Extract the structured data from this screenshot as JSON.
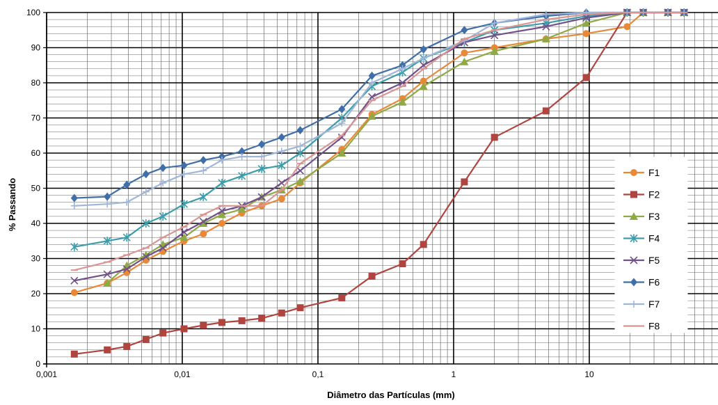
{
  "chart_data": {
    "type": "line",
    "xlabel": "Diâmetro das Partículas (mm)",
    "ylabel": "% Passando",
    "x_scale": "log",
    "xlim": [
      0.001,
      100
    ],
    "ylim": [
      0,
      100
    ],
    "grid": true,
    "legend_position": "right",
    "x_tick_labels": [
      "0,001",
      "0,01",
      "0,1",
      "1",
      "10"
    ],
    "y_tick_labels": [
      "0",
      "10",
      "20",
      "30",
      "40",
      "50",
      "60",
      "70",
      "80",
      "90",
      "100"
    ],
    "series": [
      {
        "name": "F1",
        "color": "#E8893A",
        "marker": "circle",
        "x": [
          0.0016,
          0.0028,
          0.0039,
          0.0054,
          0.0072,
          0.0103,
          0.0143,
          0.0196,
          0.0275,
          0.0385,
          0.054,
          0.074,
          0.15,
          0.25,
          0.42,
          0.6,
          1.2,
          2,
          4.8,
          9.5,
          19,
          25,
          38,
          50
        ],
        "y": [
          20.3,
          23,
          26,
          29.5,
          32,
          35,
          37,
          40,
          43,
          45,
          47,
          51.5,
          61,
          71,
          75.5,
          80.5,
          88.5,
          90,
          92.5,
          94,
          96,
          100,
          100,
          100
        ]
      },
      {
        "name": "F2",
        "color": "#B04540",
        "marker": "square",
        "x": [
          0.0016,
          0.0028,
          0.0039,
          0.0054,
          0.0072,
          0.0103,
          0.0143,
          0.0196,
          0.0275,
          0.0385,
          0.054,
          0.074,
          0.15,
          0.25,
          0.42,
          0.6,
          1.2,
          2,
          4.8,
          9.5,
          19,
          25,
          38,
          50
        ],
        "y": [
          2.8,
          4,
          5,
          7,
          8.8,
          10,
          11,
          11.8,
          12.3,
          13,
          14.5,
          16,
          18.8,
          25,
          28.5,
          34,
          51.8,
          64.5,
          72,
          81.5,
          100,
          100,
          100,
          100
        ]
      },
      {
        "name": "F3",
        "color": "#8FAA45",
        "marker": "triangle",
        "x": [
          0.0028,
          0.0039,
          0.0054,
          0.0072,
          0.0103,
          0.0143,
          0.0196,
          0.0275,
          0.0385,
          0.054,
          0.074,
          0.15,
          0.25,
          0.42,
          0.6,
          1.2,
          2,
          4.8,
          9.5,
          19,
          25,
          38,
          50
        ],
        "y": [
          23,
          28,
          31,
          34,
          36,
          40,
          42.5,
          44,
          47.5,
          49.5,
          52,
          60,
          70.5,
          74.5,
          79,
          86,
          89,
          92.5,
          97,
          100,
          100,
          100,
          100
        ]
      },
      {
        "name": "F4",
        "color": "#3C9DAA",
        "marker": "star",
        "x": [
          0.0016,
          0.0028,
          0.0039,
          0.0054,
          0.0072,
          0.0103,
          0.0143,
          0.0196,
          0.0275,
          0.0385,
          0.054,
          0.074,
          0.15,
          0.25,
          0.42,
          0.6,
          1.2,
          2,
          4.8,
          9.5,
          19,
          25,
          38,
          50
        ],
        "y": [
          33.3,
          35,
          36,
          40,
          42,
          45.5,
          47.5,
          51.5,
          53.5,
          55.5,
          56.5,
          60,
          70,
          79,
          83,
          87,
          91.5,
          95,
          97,
          99,
          100,
          100,
          100,
          100
        ]
      },
      {
        "name": "F5",
        "color": "#70508A",
        "marker": "x",
        "x": [
          0.0016,
          0.0028,
          0.0039,
          0.0054,
          0.0072,
          0.0103,
          0.0143,
          0.0196,
          0.0275,
          0.0385,
          0.054,
          0.074,
          0.15,
          0.25,
          0.42,
          0.6,
          1.2,
          2,
          4.8,
          9.5,
          19,
          25,
          38,
          50
        ],
        "y": [
          23.7,
          25.5,
          27,
          30.5,
          33,
          37.5,
          40.5,
          43.5,
          45,
          47.5,
          51.5,
          55,
          64.5,
          76,
          80,
          85,
          91.5,
          93.5,
          96,
          98.5,
          100,
          100,
          100,
          100
        ]
      },
      {
        "name": "F6",
        "color": "#3F6EA8",
        "marker": "diamond",
        "x": [
          0.0016,
          0.0028,
          0.0039,
          0.0054,
          0.0072,
          0.0103,
          0.0143,
          0.0196,
          0.0275,
          0.0385,
          0.054,
          0.074,
          0.15,
          0.25,
          0.42,
          0.6,
          1.2,
          2,
          4.8,
          9.5,
          19,
          25,
          38,
          50
        ],
        "y": [
          47.2,
          47.6,
          51,
          54,
          55.8,
          56.5,
          58,
          59,
          60.5,
          62.5,
          64.5,
          66.5,
          72.5,
          82,
          85,
          89.5,
          95,
          97,
          99,
          100,
          100,
          100,
          100,
          100
        ]
      },
      {
        "name": "F7",
        "color": "#9FB6D8",
        "marker": "plus",
        "x": [
          0.0016,
          0.0028,
          0.0039,
          0.0054,
          0.0072,
          0.0103,
          0.0143,
          0.0196,
          0.0275,
          0.0385,
          0.054,
          0.074,
          0.15,
          0.25,
          0.42,
          0.6,
          1.2,
          2,
          4.8,
          9.5,
          19,
          25,
          38,
          50
        ],
        "y": [
          45,
          45.5,
          46,
          49,
          51.5,
          54,
          55,
          58,
          59,
          59,
          60.5,
          62,
          68.5,
          80,
          84,
          87,
          92,
          97,
          99.5,
          100,
          100,
          100,
          100,
          100
        ]
      },
      {
        "name": "F8",
        "color": "#D99594",
        "marker": "dash",
        "x": [
          0.0016,
          0.0028,
          0.0039,
          0.0054,
          0.0072,
          0.0103,
          0.0143,
          0.0196,
          0.0275,
          0.0385,
          0.054,
          0.074,
          0.15,
          0.25,
          0.42,
          0.6,
          1.2,
          2,
          4.8,
          9.5,
          19,
          25,
          38,
          50
        ],
        "y": [
          26.7,
          29,
          31,
          33,
          36,
          39,
          42.5,
          45,
          45,
          45,
          49.5,
          57,
          65,
          75,
          79,
          84,
          92.5,
          95,
          98,
          99.5,
          100,
          100,
          100,
          100
        ]
      }
    ]
  }
}
